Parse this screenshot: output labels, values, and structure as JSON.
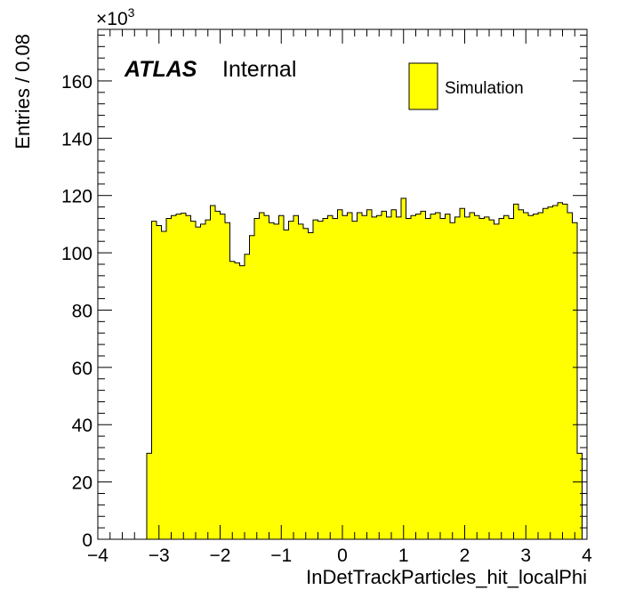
{
  "chart_data": {
    "type": "bar",
    "histogram": true,
    "bin_width": 0.08,
    "x_start": -3.2,
    "xlim": [
      -4,
      4
    ],
    "ylim": [
      0,
      178
    ],
    "y_multiplier": "×10",
    "y_multiplier_exp": "3",
    "xlabel": "InDetTrackParticles_hit_localPhi",
    "ylabel": "Entries / 0.08",
    "x_ticks": [
      -4,
      -3,
      -2,
      -1,
      0,
      1,
      2,
      3,
      4
    ],
    "x_tick_labels": [
      "−4",
      "−3",
      "−2",
      "−1",
      "0",
      "1",
      "2",
      "3",
      "4"
    ],
    "y_ticks": [
      0,
      20,
      40,
      60,
      80,
      100,
      120,
      140,
      160
    ],
    "y_tick_labels": [
      "0",
      "20",
      "40",
      "60",
      "80",
      "100",
      "120",
      "140",
      "160"
    ],
    "label_atlas": "ATLAS",
    "label_status": "Internal",
    "legend": [
      {
        "name": "Simulation",
        "color": "#ffff00"
      }
    ],
    "series": [
      {
        "name": "Simulation",
        "color": "#ffff00",
        "values": [
          30,
          111,
          109.5,
          107.5,
          112,
          113,
          113.5,
          113.8,
          113,
          111,
          109,
          110,
          111.5,
          116.5,
          114.5,
          113.5,
          110.5,
          97,
          96.5,
          95.5,
          99.5,
          106,
          112,
          114,
          113,
          110.5,
          110,
          113,
          108,
          111,
          113,
          110,
          108.5,
          107,
          111.5,
          111,
          112,
          113,
          112,
          115,
          113,
          114,
          111,
          114,
          113,
          115,
          112.5,
          113,
          114.5,
          112.5,
          115,
          112.5,
          119,
          112,
          113,
          113.5,
          114.5,
          112,
          113.5,
          114,
          112,
          113.5,
          110.5,
          112.5,
          115.5,
          112.5,
          114,
          113,
          112,
          112.5,
          111.5,
          110,
          112,
          113,
          112,
          117,
          115,
          114,
          113,
          113.5,
          114,
          115.5,
          116,
          116.5,
          117.5,
          117,
          114,
          110.5,
          30
        ]
      }
    ]
  }
}
